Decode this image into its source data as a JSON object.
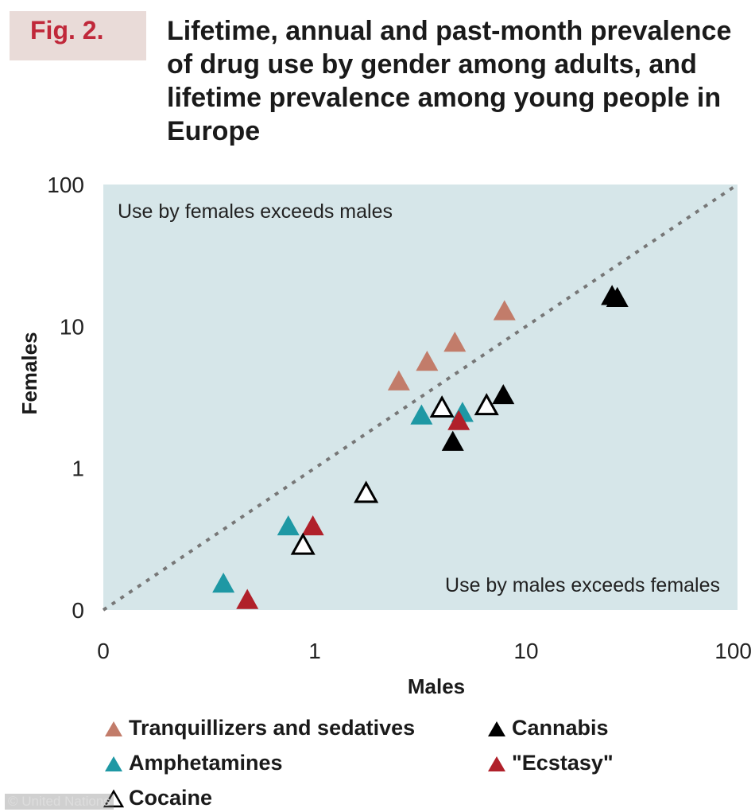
{
  "figure": {
    "label": "Fig. 2.",
    "title": "Lifetime, annual and past-month prevalence of drug use by gender among adults, and lifetime prevalence among young people in Europe"
  },
  "credit": "© United Nations",
  "colors": {
    "background": "#d6e6e9",
    "tranquillizers": "#c27c6a",
    "amphetamines": "#1e98a4",
    "cocaine": "#000000",
    "cannabis": "#000000",
    "ecstasy": "#b0202a",
    "diagonal": "#777777"
  },
  "chart_data": {
    "type": "scatter",
    "xlabel": "Males",
    "ylabel": "Females",
    "x_scale": "log",
    "y_scale": "log",
    "xlim": [
      0.1,
      100
    ],
    "ylim": [
      0.1,
      100
    ],
    "x_ticks": [
      {
        "value": 0.1,
        "label": "0"
      },
      {
        "value": 1,
        "label": "1"
      },
      {
        "value": 10,
        "label": "10"
      },
      {
        "value": 100,
        "label": "100"
      }
    ],
    "y_ticks": [
      {
        "value": 0.1,
        "label": "0"
      },
      {
        "value": 1,
        "label": "1"
      },
      {
        "value": 10,
        "label": "10"
      },
      {
        "value": 100,
        "label": "100"
      }
    ],
    "annotations": {
      "upper": "Use by females exceeds males",
      "lower": "Use by males exceeds females"
    },
    "reference_line": "y = x",
    "grid": false,
    "legend_position": "bottom",
    "series": [
      {
        "name": "Tranquillizers and sedatives",
        "color": "#c27c6a",
        "filled": true,
        "points": [
          {
            "x": 2.5,
            "y": 4.0
          },
          {
            "x": 3.4,
            "y": 5.5
          },
          {
            "x": 4.6,
            "y": 7.5
          },
          {
            "x": 7.9,
            "y": 12.5
          }
        ]
      },
      {
        "name": "Cannabis",
        "color": "#000000",
        "filled": true,
        "points": [
          {
            "x": 25.5,
            "y": 16.0
          },
          {
            "x": 27.0,
            "y": 15.5
          },
          {
            "x": 7.8,
            "y": 3.2
          },
          {
            "x": 4.5,
            "y": 1.5
          }
        ]
      },
      {
        "name": "Amphetamines",
        "color": "#1e98a4",
        "filled": true,
        "points": [
          {
            "x": 3.2,
            "y": 2.3
          },
          {
            "x": 5.0,
            "y": 2.4
          },
          {
            "x": 0.75,
            "y": 0.38
          },
          {
            "x": 0.37,
            "y": 0.15
          }
        ]
      },
      {
        "name": "\"Ecstasy\"",
        "color": "#b0202a",
        "filled": true,
        "points": [
          {
            "x": 4.8,
            "y": 2.1
          },
          {
            "x": 0.98,
            "y": 0.38
          },
          {
            "x": 0.48,
            "y": 0.115
          }
        ]
      },
      {
        "name": "Cocaine",
        "color": "#000000",
        "filled": false,
        "points": [
          {
            "x": 4.0,
            "y": 2.6
          },
          {
            "x": 6.5,
            "y": 2.7
          },
          {
            "x": 1.75,
            "y": 0.65
          },
          {
            "x": 0.88,
            "y": 0.28
          }
        ]
      }
    ]
  },
  "legend": [
    {
      "label": "Tranquillizers and sedatives",
      "color": "#c27c6a",
      "filled": true
    },
    {
      "label": "Cannabis",
      "color": "#000000",
      "filled": true
    },
    {
      "label": "Amphetamines",
      "color": "#1e98a4",
      "filled": true
    },
    {
      "label": "\"Ecstasy\"",
      "color": "#b0202a",
      "filled": true
    },
    {
      "label": "Cocaine",
      "color": "#000000",
      "filled": false
    }
  ]
}
